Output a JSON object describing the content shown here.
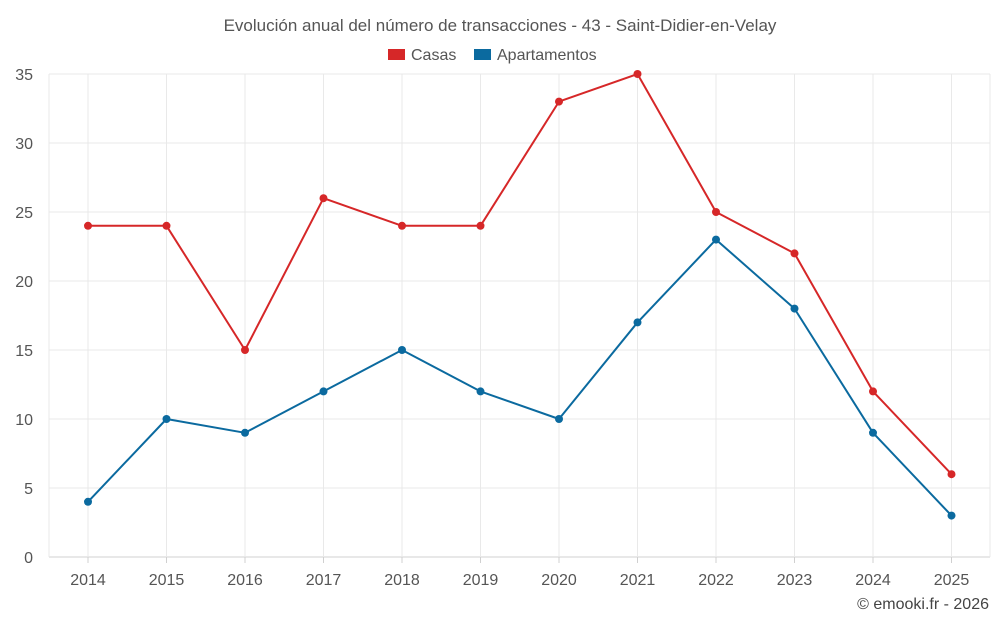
{
  "chart_data": {
    "type": "line",
    "title": "Evolución anual del número de transacciones - 43 - Saint-Didier-en-Velay",
    "categories": [
      "2014",
      "2015",
      "2016",
      "2017",
      "2018",
      "2019",
      "2020",
      "2021",
      "2022",
      "2023",
      "2024",
      "2025"
    ],
    "series": [
      {
        "name": "Casas",
        "color": "#d62728",
        "values": [
          24,
          24,
          15,
          26,
          24,
          24,
          33,
          35,
          25,
          22,
          12,
          6
        ]
      },
      {
        "name": "Apartamentos",
        "color": "#0b6a9f",
        "values": [
          4,
          10,
          9,
          12,
          15,
          12,
          10,
          17,
          23,
          18,
          9,
          3
        ]
      }
    ],
    "xlabel": "",
    "ylabel": "",
    "ylim": [
      0,
      35
    ],
    "yticks": [
      0,
      5,
      10,
      15,
      20,
      25,
      30,
      35
    ],
    "grid": true,
    "legend": "top-center",
    "credit": "© emooki.fr - 2026"
  }
}
